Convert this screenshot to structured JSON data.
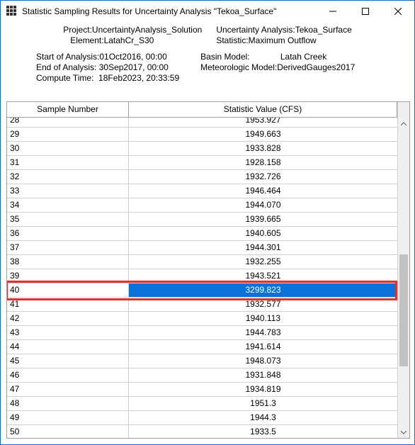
{
  "window": {
    "title": "Statistic Sampling Results for Uncertainty Analysis \"Tekoa_Surface\""
  },
  "info1": {
    "left": "Project:UncertaintyAnalysis_Solution\n   Element:LatahCr_S30",
    "right": "Uncertainty Analysis:Tekoa_Surface\nStatistic:Maximum Outflow"
  },
  "info2": {
    "left": "Start of Analysis:01Oct2016, 00:00\nEnd of Analysis: 30Sep2017, 00:00\nCompute Time:  18Feb2023, 20:33:59",
    "right": "Basin Model:             Latah Creek\nMeteorologic Model:DerivedGauges2017"
  },
  "headers": {
    "col1": "Sample Number",
    "col2": "Statistic Value (CFS)"
  },
  "rows": [
    {
      "n": "28",
      "v": "1953.927",
      "first": true
    },
    {
      "n": "29",
      "v": "1949.663"
    },
    {
      "n": "30",
      "v": "1933.828"
    },
    {
      "n": "31",
      "v": "1928.158"
    },
    {
      "n": "32",
      "v": "1932.726"
    },
    {
      "n": "33",
      "v": "1946.464"
    },
    {
      "n": "34",
      "v": "1944.070"
    },
    {
      "n": "35",
      "v": "1939.665"
    },
    {
      "n": "36",
      "v": "1940.605"
    },
    {
      "n": "37",
      "v": "1944.301"
    },
    {
      "n": "38",
      "v": "1932.255"
    },
    {
      "n": "39",
      "v": "1943.521"
    },
    {
      "n": "40",
      "v": "3299.823",
      "sel": true,
      "hl": true
    },
    {
      "n": "41",
      "v": "1932.577"
    },
    {
      "n": "42",
      "v": "1940.113"
    },
    {
      "n": "43",
      "v": "1944.783"
    },
    {
      "n": "44",
      "v": "1941.614"
    },
    {
      "n": "45",
      "v": "1948.073"
    },
    {
      "n": "46",
      "v": "1931.848"
    },
    {
      "n": "47",
      "v": "1934.819"
    },
    {
      "n": "48",
      "v": "1951.3"
    },
    {
      "n": "49",
      "v": "1944.3"
    },
    {
      "n": "50",
      "v": "1933.5"
    }
  ],
  "scrollbar": {
    "thumb_top_pct": 42,
    "thumb_height_pct": 38
  },
  "colors": {
    "selection": "#0a72d8",
    "highlight_border": "#e03030",
    "window_border": "#1769c9"
  }
}
